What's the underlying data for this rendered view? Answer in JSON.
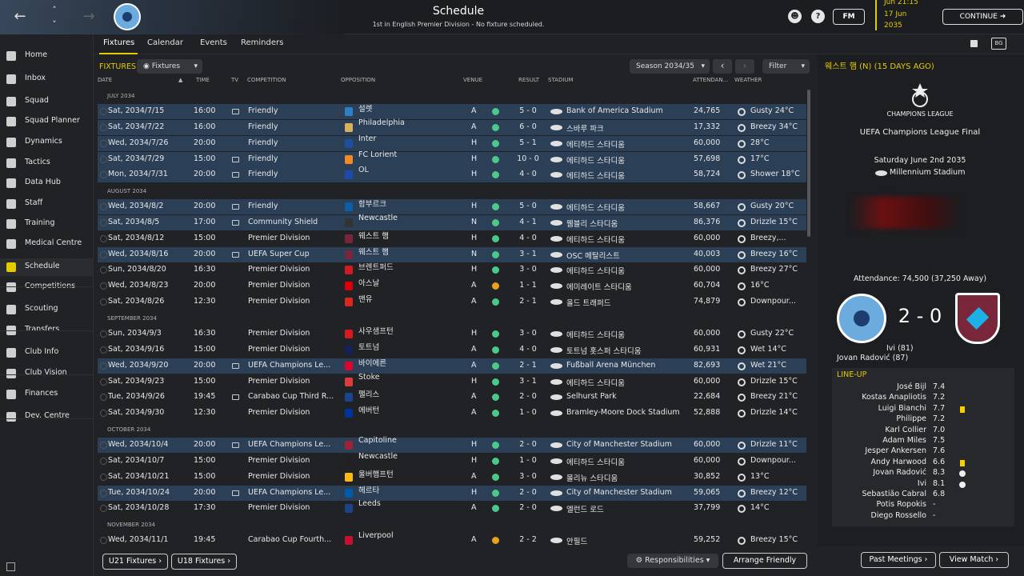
{
  "header": {
    "title": "Schedule",
    "subtitle": "1st in English Premier Division - No fixture scheduled.",
    "date_day": "17 Jun",
    "date_year": "2035",
    "date_time": "Jun 21:15",
    "fm_label": "FM",
    "continue_label": "CONTINUE"
  },
  "sidebar": {
    "items": [
      {
        "label": "Home",
        "icon": "home-icon"
      },
      {
        "label": "Inbox",
        "icon": "inbox-icon"
      },
      {
        "label": "Squad",
        "icon": "shirt-icon"
      },
      {
        "label": "Squad Planner",
        "icon": "clipboard-icon"
      },
      {
        "label": "Dynamics",
        "icon": "dynamics-icon"
      },
      {
        "label": "Tactics",
        "icon": "tactics-icon"
      },
      {
        "label": "Data Hub",
        "icon": "data-hub-icon"
      },
      {
        "label": "Staff",
        "icon": "staff-icon"
      },
      {
        "label": "Training",
        "icon": "training-icon"
      },
      {
        "label": "Medical Centre",
        "icon": "medical-icon"
      },
      {
        "label": "Schedule",
        "icon": "calendar-icon"
      },
      {
        "label": "Competitions",
        "icon": "trophy-icon"
      },
      {
        "label": "Scouting",
        "icon": "scouting-icon"
      },
      {
        "label": "Transfers",
        "icon": "transfers-icon"
      },
      {
        "label": "Club Info",
        "icon": "shield-icon"
      },
      {
        "label": "Club Vision",
        "icon": "vision-icon"
      },
      {
        "label": "Finances",
        "icon": "finances-icon"
      },
      {
        "label": "Dev. Centre",
        "icon": "dev-centre-icon"
      }
    ]
  },
  "tabs": [
    "Fixtures",
    "Calendar",
    "Events",
    "Reminders"
  ],
  "fixtures": {
    "label": "FIXTURES",
    "filter_dropdown": "Fixtures",
    "season": "Season 2034/35",
    "filter": "Filter",
    "columns": [
      "DATE",
      "TIME",
      "TV",
      "COMPETITION",
      "OPPOSITION",
      "VENUE",
      "RESULT",
      "STADIUM",
      "ATTENDAN...",
      "WEATHER"
    ],
    "months": [
      "JULY 2034",
      "AUGUST 2034",
      "SEPTEMBER 2034",
      "OCTOBER 2034",
      "NOVEMBER 2034"
    ],
    "rows": [
      {
        "date": "Sat, 2034/7/15",
        "time": "16:00",
        "comp": "Friendly",
        "opp": "설렛",
        "venue": "A",
        "result": "5 - 0",
        "stadium": "Bank of America Stadium",
        "att": "24,765",
        "weather": "Gusty 24°C"
      },
      {
        "date": "Sat, 2034/7/22",
        "time": "16:00",
        "comp": "Friendly",
        "opp": "Philadelphia",
        "venue": "A",
        "result": "6 - 0",
        "stadium": "스바루 파크",
        "att": "17,332",
        "weather": "Breezy 34°C"
      },
      {
        "date": "Wed, 2034/7/26",
        "time": "20:00",
        "comp": "Friendly",
        "opp": "Inter",
        "venue": "H",
        "result": "5 - 1",
        "stadium": "에티하드 스타디움",
        "att": "60,000",
        "weather": "28°C"
      },
      {
        "date": "Sat, 2034/7/29",
        "time": "15:00",
        "comp": "Friendly",
        "opp": "FC Lorient",
        "venue": "H",
        "result": "10 - 0",
        "stadium": "에티하드 스타디움",
        "att": "57,698",
        "weather": "17°C"
      },
      {
        "date": "Mon, 2034/7/31",
        "time": "20:00",
        "comp": "Friendly",
        "opp": "OL",
        "venue": "H",
        "result": "4 - 0",
        "stadium": "에티하드 스타디움",
        "att": "58,724",
        "weather": "Shower 18°C"
      },
      {
        "date": "Wed, 2034/8/2",
        "time": "20:00",
        "comp": "Friendly",
        "opp": "함부르크",
        "venue": "H",
        "result": "5 - 0",
        "stadium": "에티하드 스타디움",
        "att": "58,667",
        "weather": "Gusty 20°C"
      },
      {
        "date": "Sat, 2034/8/5",
        "time": "17:00",
        "comp": "Community Shield",
        "opp": "Newcastle",
        "venue": "N",
        "result": "4 - 1",
        "stadium": "웸블리 스타디움",
        "att": "86,376",
        "weather": "Drizzle 15°C"
      },
      {
        "date": "Sat, 2034/8/12",
        "time": "15:00",
        "comp": "Premier Division",
        "opp": "웨스트 햄",
        "venue": "H",
        "result": "4 - 0",
        "stadium": "에티하드 스타디움",
        "att": "60,000",
        "weather": "Breezy,..."
      },
      {
        "date": "Wed, 2034/8/16",
        "time": "20:00",
        "comp": "UEFA Super Cup",
        "opp": "웨스트 햄",
        "venue": "N",
        "result": "3 - 1",
        "stadium": "OSC 메탈리스트",
        "att": "40,003",
        "weather": "Breezy 16°C"
      },
      {
        "date": "Sun, 2034/8/20",
        "time": "16:30",
        "comp": "Premier Division",
        "opp": "브렌트퍼드",
        "venue": "H",
        "result": "3 - 0",
        "stadium": "에티하드 스타디움",
        "att": "60,000",
        "weather": "Breezy 27°C"
      },
      {
        "date": "Wed, 2034/8/23",
        "time": "20:00",
        "comp": "Premier Division",
        "opp": "아스날",
        "venue": "A",
        "result": "1 - 1",
        "stadium": "에미레이트 스타디움",
        "att": "60,704",
        "weather": "16°C"
      },
      {
        "date": "Sat, 2034/8/26",
        "time": "12:30",
        "comp": "Premier Division",
        "opp": "맨유",
        "venue": "A",
        "result": "2 - 1",
        "stadium": "올드 트래퍼드",
        "att": "74,879",
        "weather": "Downpour..."
      },
      {
        "date": "Sun, 2034/9/3",
        "time": "16:30",
        "comp": "Premier Division",
        "opp": "사우샘프턴",
        "venue": "H",
        "result": "3 - 0",
        "stadium": "에티하드 스타디움",
        "att": "60,000",
        "weather": "Gusty 22°C"
      },
      {
        "date": "Sat, 2034/9/16",
        "time": "15:00",
        "comp": "Premier Division",
        "opp": "토트넘",
        "venue": "A",
        "result": "4 - 0",
        "stadium": "토트넘 홋스퍼 스타디움",
        "att": "60,931",
        "weather": "Wet 14°C"
      },
      {
        "date": "Wed, 2034/9/20",
        "time": "20:00",
        "comp": "UEFA Champions Le...",
        "opp": "바이에른",
        "venue": "A",
        "result": "2 - 1",
        "stadium": "Fußball Arena München",
        "att": "82,693",
        "weather": "Wet 21°C"
      },
      {
        "date": "Sat, 2034/9/23",
        "time": "15:00",
        "comp": "Premier Division",
        "opp": "Stoke",
        "venue": "H",
        "result": "3 - 1",
        "stadium": "에티하드 스타디움",
        "att": "60,000",
        "weather": "Drizzle 15°C"
      },
      {
        "date": "Tue, 2034/9/26",
        "time": "19:45",
        "comp": "Carabao Cup Third R...",
        "opp": "팰리스",
        "venue": "A",
        "result": "2 - 0",
        "stadium": "Selhurst Park",
        "att": "22,684",
        "weather": "Breezy 21°C"
      },
      {
        "date": "Sat, 2034/9/30",
        "time": "12:30",
        "comp": "Premier Division",
        "opp": "에버턴",
        "venue": "A",
        "result": "1 - 0",
        "stadium": "Bramley-Moore Dock Stadium",
        "att": "52,888",
        "weather": "Drizzle 14°C"
      },
      {
        "date": "Wed, 2034/10/4",
        "time": "20:00",
        "comp": "UEFA Champions Le...",
        "opp": "Capitoline",
        "venue": "H",
        "result": "2 - 0",
        "stadium": "City of Manchester Stadium",
        "att": "60,000",
        "weather": "Drizzle 11°C"
      },
      {
        "date": "Sat, 2034/10/7",
        "time": "15:00",
        "comp": "Premier Division",
        "opp": "Newcastle",
        "venue": "H",
        "result": "1 - 0",
        "stadium": "에티하드 스타디움",
        "att": "60,000",
        "weather": "Downpour..."
      },
      {
        "date": "Sat, 2034/10/21",
        "time": "15:00",
        "comp": "Premier Division",
        "opp": "울버햄프턴",
        "venue": "A",
        "result": "3 - 0",
        "stadium": "몰리뉴 스타디움",
        "att": "30,852",
        "weather": "13°C"
      },
      {
        "date": "Tue, 2034/10/24",
        "time": "20:00",
        "comp": "UEFA Champions Le...",
        "opp": "헤르타",
        "venue": "H",
        "result": "2 - 0",
        "stadium": "City of Manchester Stadium",
        "att": "59,065",
        "weather": "Breezy 12°C"
      },
      {
        "date": "Sat, 2034/10/28",
        "time": "17:30",
        "comp": "Premier Division",
        "opp": "Leeds",
        "venue": "A",
        "result": "2 - 0",
        "stadium": "엘런드 로드",
        "att": "37,799",
        "weather": "14°C"
      },
      {
        "date": "Wed, 2034/11/1",
        "time": "19:45",
        "comp": "Carabao Cup Fourth...",
        "opp": "Liverpool",
        "venue": "A",
        "result": "2 - 2",
        "stadium": "안필드",
        "att": "59,252",
        "weather": "Breezy 15°C"
      }
    ]
  },
  "bottom": {
    "u21": "U21 Fixtures",
    "u18": "U18 Fixtures",
    "responsibilities": "Responsibilities",
    "arrange": "Arrange Friendly",
    "past": "Past Meetings",
    "view": "View Match"
  },
  "match": {
    "heading": "웨스트 햄 (N) (15 DAYS AGO)",
    "ucl_word": "CHAMPIONS LEAGUE",
    "competition": "UEFA Champions League Final",
    "date": "Saturday June 2nd 2035",
    "stadium": "Millennium Stadium",
    "attendance": "Attendance: 74,500 (37,250 Away)",
    "score": "2 - 0",
    "scorers": [
      "Ivi (81)",
      "Jovan Radović (87)"
    ],
    "lineup_title": "LINE-UP",
    "lineup": [
      {
        "name": "José Bijl",
        "rating": "7.4"
      },
      {
        "name": "Kostas Anapliotis",
        "rating": "7.2"
      },
      {
        "name": "Luigi Bianchi",
        "rating": "7.7"
      },
      {
        "name": "Philippe",
        "rating": "7.2"
      },
      {
        "name": "Karl Collier",
        "rating": "7.0"
      },
      {
        "name": "Adam Miles",
        "rating": "7.5"
      },
      {
        "name": "Jesper Ankersen",
        "rating": "7.6"
      },
      {
        "name": "Andy Harwood",
        "rating": "6.6"
      },
      {
        "name": "Jovan Radović",
        "rating": "8.3"
      },
      {
        "name": "Ivi",
        "rating": "8.1"
      },
      {
        "name": "Sebastião Cabral",
        "rating": "6.8"
      },
      {
        "name": "Potis Ropokis",
        "rating": "-"
      },
      {
        "name": "Diego Rossello",
        "rating": "-"
      }
    ]
  },
  "colors": {
    "accent": "#e4cb00",
    "win": "#4cc98a",
    "draw": "#e8a11d",
    "band": "#2b3f57"
  }
}
